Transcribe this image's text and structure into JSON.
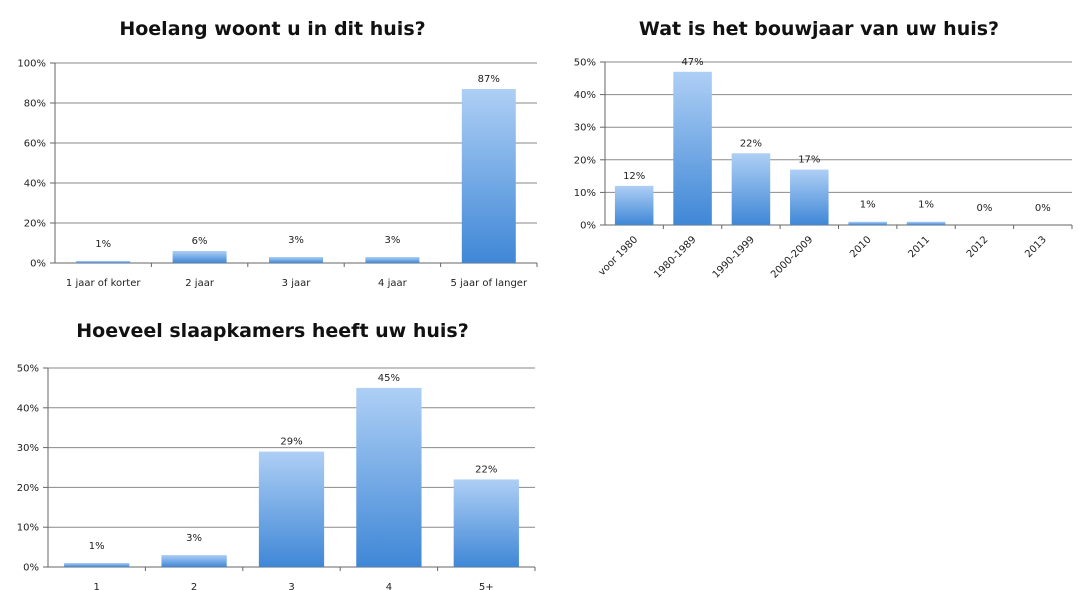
{
  "chart_data": [
    {
      "type": "bar",
      "title": "Hoelang woont u in dit huis?",
      "categories": [
        "1 jaar of korter",
        "2 jaar",
        "3 jaar",
        "4 jaar",
        "5 jaar of langer"
      ],
      "values": [
        1,
        6,
        3,
        3,
        87
      ],
      "value_labels": [
        "1%",
        "6%",
        "3%",
        "3%",
        "87%"
      ],
      "y_ticks": [
        "0%",
        "20%",
        "40%",
        "60%",
        "80%",
        "100%"
      ],
      "ylim": [
        0,
        100
      ],
      "grid": true,
      "rotated_categories": false,
      "colors": {
        "bar_top": "#aecff5",
        "bar_bottom": "#3f87d6",
        "grid": "#8a8a8a"
      }
    },
    {
      "type": "bar",
      "title": "Wat is het bouwjaar van uw huis?",
      "categories": [
        "voor 1980",
        "1980-1989",
        "1990-1999",
        "2000-2009",
        "2010",
        "2011",
        "2012",
        "2013"
      ],
      "values": [
        12,
        47,
        22,
        17,
        1,
        1,
        0,
        0
      ],
      "value_labels": [
        "12%",
        "47%",
        "22%",
        "17%",
        "1%",
        "1%",
        "0%",
        "0%"
      ],
      "y_ticks": [
        "0%",
        "10%",
        "20%",
        "30%",
        "40%",
        "50%"
      ],
      "ylim": [
        0,
        50
      ],
      "grid": true,
      "rotated_categories": true,
      "colors": {
        "bar_top": "#aecff5",
        "bar_bottom": "#3f87d6",
        "grid": "#8a8a8a"
      }
    },
    {
      "type": "bar",
      "title": "Hoeveel slaapkamers heeft uw huis?",
      "categories": [
        "1",
        "2",
        "3",
        "4",
        "5+"
      ],
      "values": [
        1,
        3,
        29,
        45,
        22
      ],
      "value_labels": [
        "1%",
        "3%",
        "29%",
        "45%",
        "22%"
      ],
      "y_ticks": [
        "0%",
        "10%",
        "20%",
        "30%",
        "40%",
        "50%"
      ],
      "ylim": [
        0,
        50
      ],
      "grid": true,
      "rotated_categories": false,
      "colors": {
        "bar_top": "#aecff5",
        "bar_bottom": "#3f87d6",
        "grid": "#8a8a8a"
      }
    }
  ]
}
